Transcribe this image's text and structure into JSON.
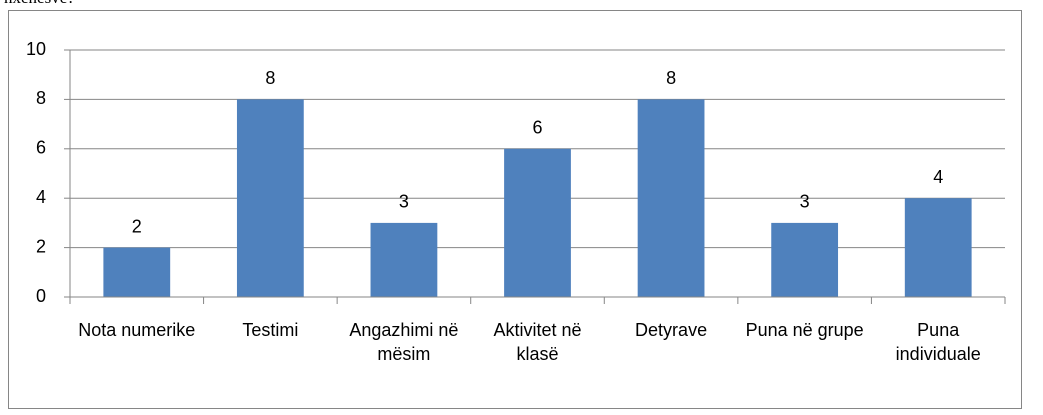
{
  "caption": "nxënësve?",
  "chart_data": {
    "type": "bar",
    "categories": [
      "Nota numerike",
      "Testimi",
      "Angazhimi në mësim",
      "Aktivitet në klasë",
      "Detyrave",
      "Puna në grupe",
      "Puna individuale"
    ],
    "values": [
      2,
      8,
      3,
      6,
      8,
      3,
      4
    ],
    "color": "#4f81bd",
    "ylim": [
      0,
      10
    ],
    "yticks": [
      0,
      2,
      4,
      6,
      8,
      10
    ],
    "grid": true
  }
}
